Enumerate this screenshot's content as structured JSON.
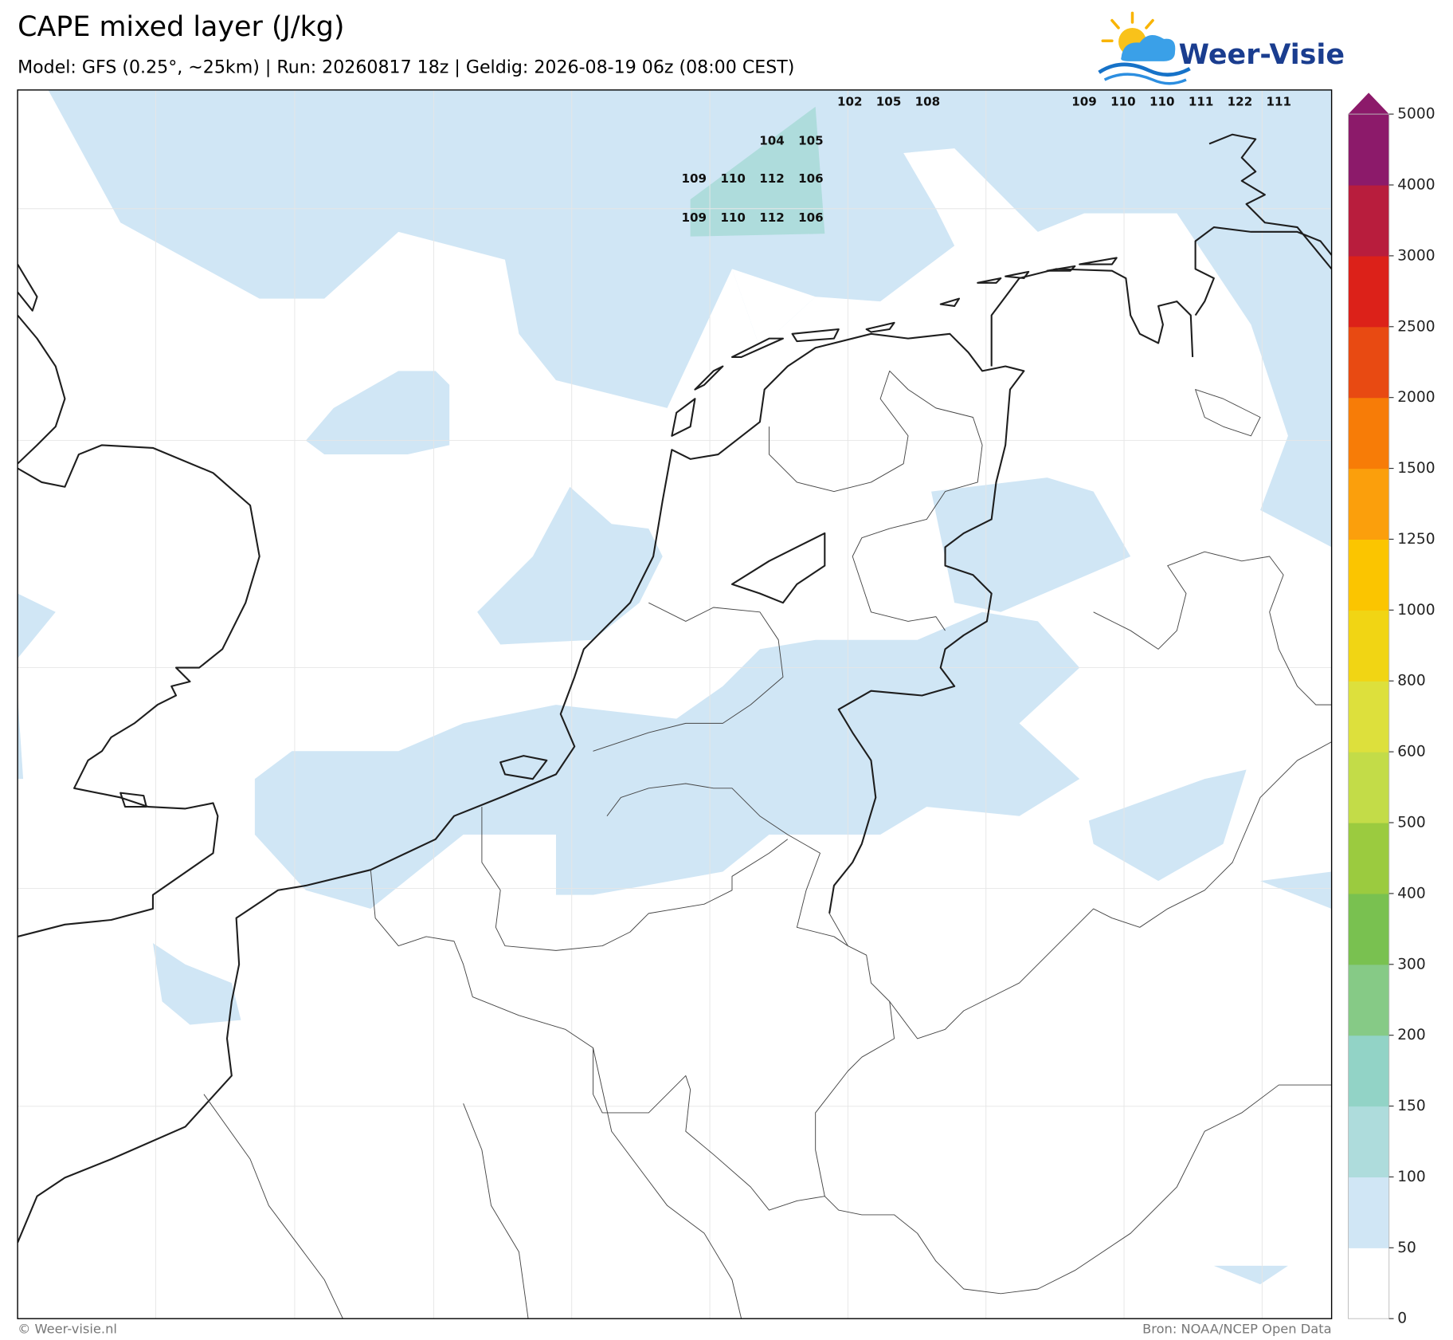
{
  "title": "CAPE mixed layer (J/kg)",
  "subtitle": "Model: GFS (0.25°, ~25km)  |  Run: 20260817 18z  |  Geldig: 2026-08-19 06z (08:00 CEST)",
  "logo": "Weer-Visie",
  "colorbar": {
    "ticks": [
      0,
      50,
      100,
      150,
      200,
      300,
      400,
      500,
      600,
      800,
      1000,
      1250,
      1500,
      2000,
      2500,
      3000,
      4000,
      5000
    ],
    "colors": [
      "#ffffff",
      "#d0e6f5",
      "#aedcdc",
      "#92d3c6",
      "#86ca86",
      "#79c150",
      "#9bcb3f",
      "#c3dc48",
      "#dde03c",
      "#f1d514",
      "#fbc500",
      "#fb9f0c",
      "#f77c07",
      "#e84a12",
      "#dc2119",
      "#b81d3d",
      "#8c1a6a"
    ],
    "over_color": "#8c1a6a"
  },
  "point_labels": [
    102,
    105,
    108,
    109,
    110,
    110,
    111,
    122,
    111,
    104,
    105,
    109,
    110,
    112,
    106,
    109,
    110,
    112,
    106
  ],
  "footer": {
    "left": "© Weer-visie.nl",
    "right": "Bron: NOAA/NCEP Open Data"
  }
}
